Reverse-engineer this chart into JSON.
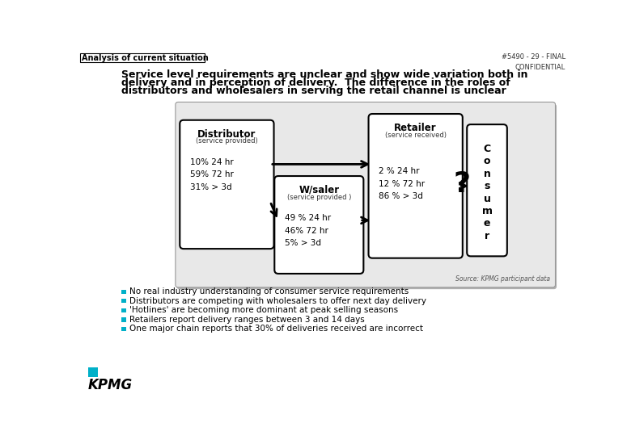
{
  "header_left": "Analysis of current situation",
  "header_right": "#5490 - 29 - FINAL\nCONFIDENTIAL",
  "title_line1": "Service level requirements are unclear and show wide variation both in",
  "title_line2": "delivery and in perception of delivery.  The difference in the roles of",
  "title_line3": "distributors and wholesalers in serving the retail channel is unclear",
  "distributor_title": "Distributor",
  "distributor_sub": "(service provided)",
  "distributor_data": "10% 24 hr\n59% 72 hr\n31% > 3d",
  "wsaler_title": "W/saler",
  "wsaler_sub": "(service provided )",
  "wsaler_data": "49 % 24 hr\n46% 72 hr\n5% > 3d",
  "retailer_title": "Retailer",
  "retailer_sub": "(service received)",
  "retailer_data": "2 % 24 hr\n12 % 72 hr\n86 % > 3d",
  "consumer_letters": [
    "C",
    "o",
    "n",
    "s",
    "u",
    "m",
    "e",
    "r"
  ],
  "question_mark": "?",
  "source_text": "Source: KPMG participant data",
  "bullets": [
    "No real industry understanding of consumer service requirements",
    "Distributors are competing with wholesalers to offer next day delivery",
    "'Hotlines' are becoming more dominant at peak selling seasons",
    "Retailers report delivery ranges between 3 and 14 days",
    "One major chain reports that 30% of deliveries received are incorrect"
  ],
  "bullet_color": "#00b0c8",
  "diagram_bg": "#d8d8d8",
  "diagram_inner_bg": "#f0f0f0"
}
